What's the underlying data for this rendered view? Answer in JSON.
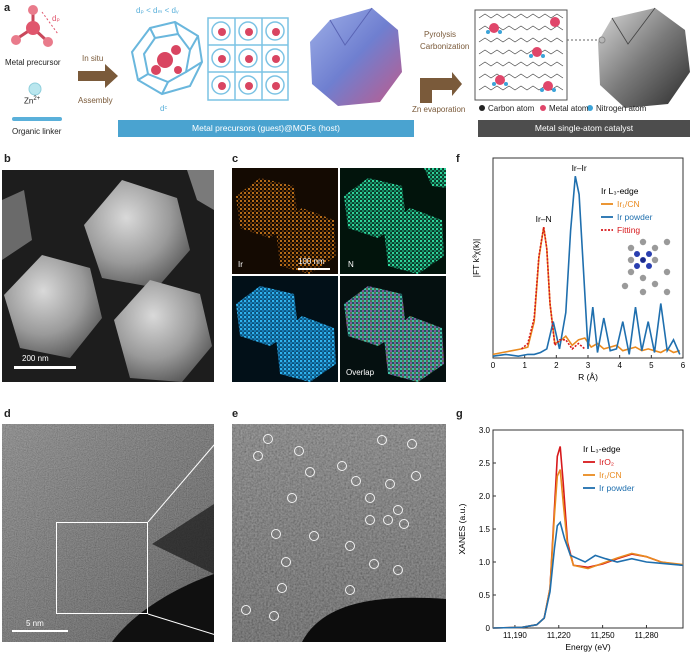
{
  "panel_labels": {
    "a": "a",
    "b": "b",
    "c": "c",
    "d": "d",
    "e": "e",
    "f": "f",
    "g": "g"
  },
  "panel_a": {
    "metal_precursor": "Metal precursor",
    "zn": "Zn",
    "zn_sup": "2+",
    "organic_linker": "Organic linker",
    "in_situ": "In situ",
    "assembly": "Assembly",
    "size_relation": "dₚ < dₘ < dᵥ",
    "dc": "dᶜ",
    "dp": "dₚ",
    "mof_bar": "Metal precursors (guest)@MOFs (host)",
    "pyrolysis": "Pyrolysis",
    "carbonization": "Carbonization",
    "zn_evap": "Zn evaporation",
    "legend_carbon": "Carbon atom",
    "legend_metal": "Metal atom",
    "legend_nitrogen": "Nitrogen atom",
    "catalyst_bar": "Metal single-atom catalyst"
  },
  "panel_b": {
    "scale": "200 nm"
  },
  "panel_c": {
    "ir": "Ir",
    "n": "N",
    "scale": "100 nm",
    "overlap": "Overlap"
  },
  "panel_d": {
    "scale": "5 nm"
  },
  "colors": {
    "orange": "#e98a1f",
    "blue": "#1f6fae",
    "red": "#d7191c",
    "teal_bar": "#4aa3d0",
    "grey_bar": "#4d4d4d"
  },
  "chart_data": [
    {
      "type": "line",
      "panel": "f",
      "legend_title": "Ir L₃-edge",
      "xlabel": "R (Å)",
      "ylabel": "|FT k³χ(k)|",
      "xlim": [
        0,
        6
      ],
      "xticks": [
        "0",
        "1",
        "2",
        "3",
        "4",
        "5",
        "6"
      ],
      "annotations": [
        "Ir–Ir",
        "Ir–N"
      ],
      "series": [
        {
          "name": "Ir₁/CN",
          "color": "#e98a1f",
          "x": [
            0.0,
            0.3,
            0.6,
            0.9,
            1.1,
            1.3,
            1.45,
            1.6,
            1.7,
            1.8,
            1.95,
            2.1,
            2.3,
            2.5,
            2.7,
            2.9,
            3.1,
            3.3,
            3.5,
            3.7,
            3.9,
            4.1,
            4.3,
            4.5,
            4.7,
            4.9,
            5.1,
            5.3,
            5.5,
            5.7,
            5.9
          ],
          "y": [
            0.02,
            0.03,
            0.04,
            0.05,
            0.06,
            0.2,
            0.55,
            0.72,
            0.6,
            0.3,
            0.08,
            0.09,
            0.12,
            0.07,
            0.1,
            0.11,
            0.06,
            0.08,
            0.05,
            0.06,
            0.07,
            0.04,
            0.05,
            0.06,
            0.04,
            0.05,
            0.04,
            0.03,
            0.05,
            0.03,
            0.04
          ]
        },
        {
          "name": "Ir powder",
          "color": "#1f6fae",
          "x": [
            0.0,
            0.4,
            0.8,
            1.1,
            1.3,
            1.5,
            1.7,
            1.9,
            2.1,
            2.3,
            2.45,
            2.6,
            2.72,
            2.85,
            3.0,
            3.15,
            3.3,
            3.5,
            3.7,
            3.9,
            4.1,
            4.3,
            4.5,
            4.7,
            4.9,
            5.1,
            5.3,
            5.5,
            5.7,
            5.9
          ],
          "y": [
            0.01,
            0.02,
            0.01,
            0.02,
            0.02,
            0.03,
            0.05,
            0.2,
            0.05,
            0.25,
            0.7,
            1.0,
            0.9,
            0.5,
            0.05,
            0.28,
            0.03,
            0.22,
            0.04,
            0.05,
            0.2,
            0.02,
            0.28,
            0.04,
            0.2,
            0.03,
            0.3,
            0.04,
            0.1,
            0.02
          ]
        },
        {
          "name": "Fitting",
          "color": "#d7191c",
          "dashed": true,
          "x": [
            0.9,
            1.1,
            1.3,
            1.45,
            1.6,
            1.7,
            1.8,
            1.95,
            2.1,
            2.3,
            2.5,
            2.7,
            2.9
          ],
          "y": [
            0.05,
            0.08,
            0.22,
            0.56,
            0.72,
            0.6,
            0.3,
            0.07,
            0.1,
            0.1,
            0.05,
            0.08,
            0.05
          ]
        }
      ]
    },
    {
      "type": "line",
      "panel": "g",
      "legend_title": "Ir L₃-edge",
      "xlabel": "Energy (eV)",
      "ylabel": "XANES (a.u.)",
      "xlim": [
        11175,
        11305
      ],
      "ylim": [
        0,
        3.0
      ],
      "xticks": [
        "11,190",
        "11,220",
        "11,250",
        "11,280"
      ],
      "yticks": [
        "0",
        "0.5",
        "1.0",
        "1.5",
        "2.0",
        "2.5",
        "3.0"
      ],
      "series": [
        {
          "name": "IrO₂",
          "color": "#d7191c",
          "x": [
            11175,
            11195,
            11205,
            11210,
            11214,
            11217,
            11219,
            11221,
            11223,
            11226,
            11230,
            11240,
            11250,
            11260,
            11270,
            11280,
            11290,
            11305
          ],
          "y": [
            0.0,
            0.01,
            0.05,
            0.15,
            0.6,
            1.8,
            2.6,
            2.75,
            2.2,
            1.3,
            0.95,
            0.92,
            0.97,
            1.05,
            1.12,
            1.08,
            1.0,
            0.95
          ]
        },
        {
          "name": "Ir₁/CN",
          "color": "#e98a1f",
          "x": [
            11175,
            11195,
            11205,
            11210,
            11214,
            11217,
            11219,
            11221,
            11223,
            11226,
            11230,
            11240,
            11250,
            11260,
            11270,
            11280,
            11290,
            11305
          ],
          "y": [
            0.0,
            0.01,
            0.05,
            0.15,
            0.6,
            1.7,
            2.3,
            2.4,
            1.9,
            1.25,
            0.95,
            0.9,
            0.98,
            1.06,
            1.13,
            1.08,
            1.0,
            0.96
          ]
        },
        {
          "name": "Ir powder",
          "color": "#1f6fae",
          "x": [
            11175,
            11195,
            11205,
            11210,
            11214,
            11217,
            11219,
            11221,
            11224,
            11228,
            11233,
            11238,
            11245,
            11252,
            11260,
            11270,
            11280,
            11290,
            11305
          ],
          "y": [
            0.0,
            0.01,
            0.05,
            0.15,
            0.55,
            1.2,
            1.55,
            1.6,
            1.35,
            1.1,
            1.05,
            1.0,
            1.1,
            1.05,
            1.0,
            1.05,
            1.0,
            0.98,
            0.95
          ]
        }
      ]
    }
  ]
}
